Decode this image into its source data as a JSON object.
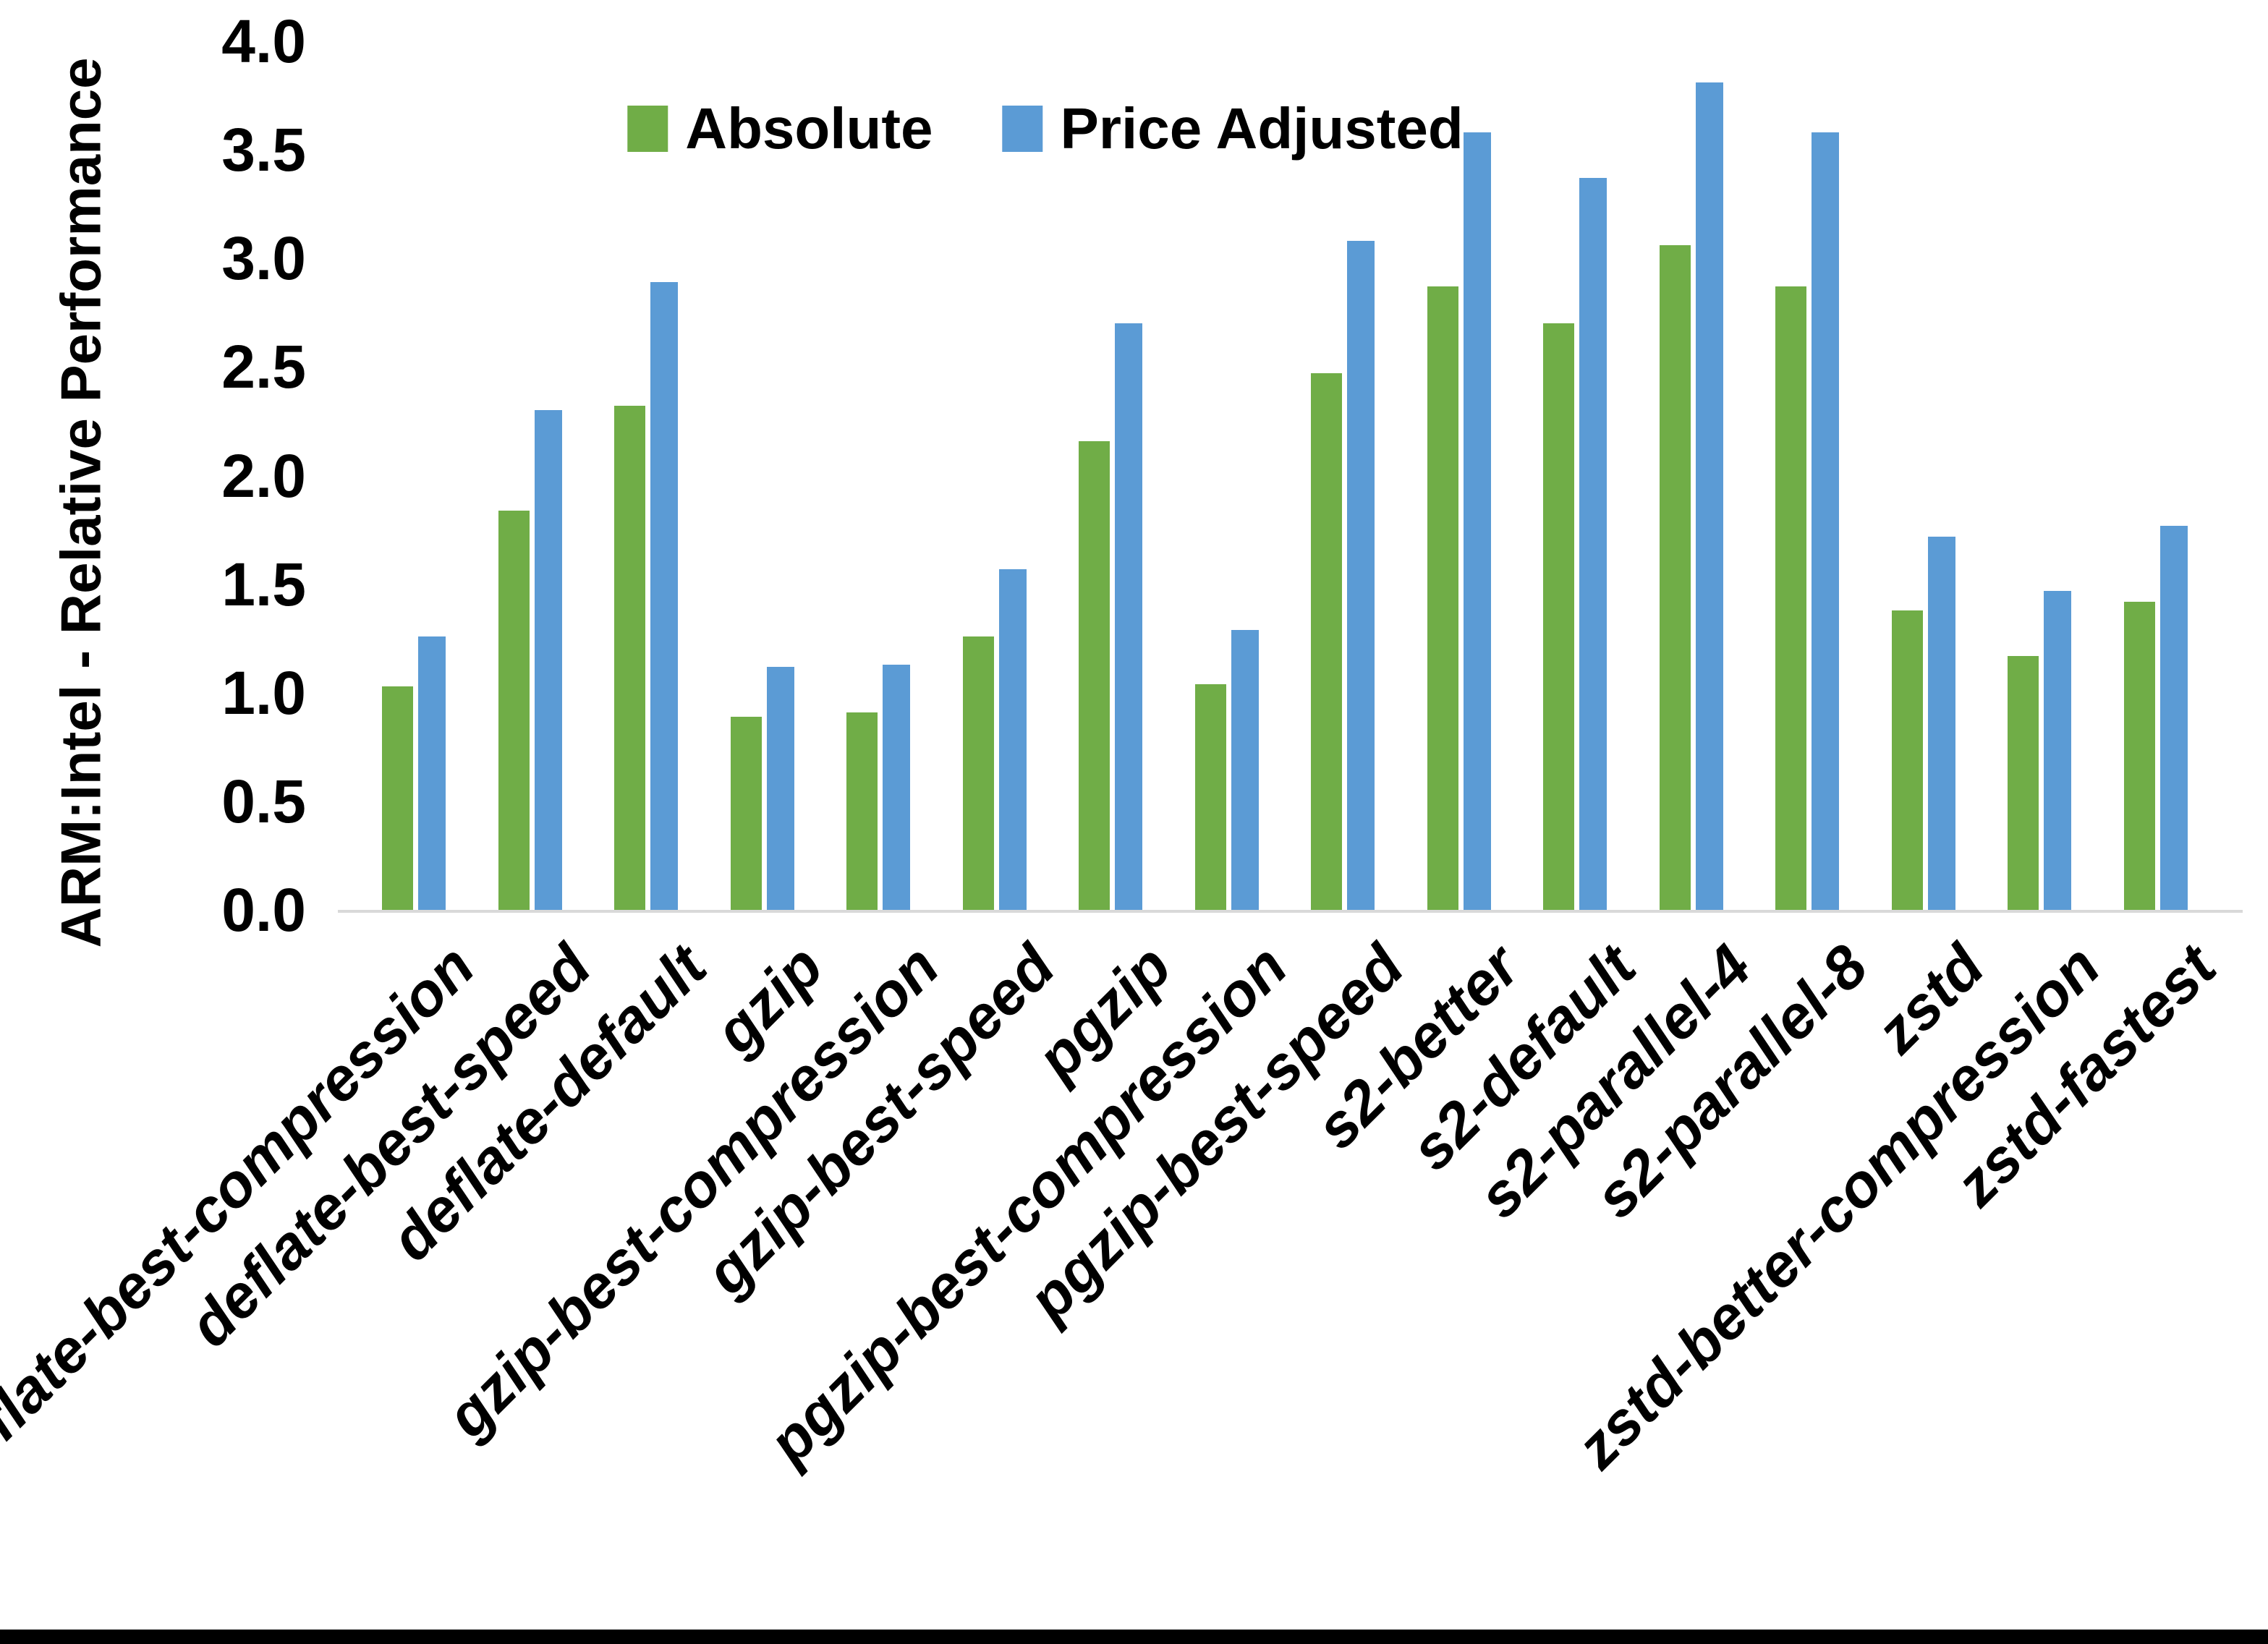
{
  "chart_data": {
    "type": "bar",
    "title": "",
    "xlabel": "",
    "ylabel": "ARM:Intel - Relative Performance",
    "ylim": [
      0.0,
      4.0
    ],
    "ytick_step": 0.5,
    "ytick_labels": [
      "0.0",
      "0.5",
      "1.0",
      "1.5",
      "2.0",
      "2.5",
      "3.0",
      "3.5",
      "4.0"
    ],
    "grid": false,
    "legend_position": "top-center",
    "background_color": "#FFFFFF",
    "axis_line_color": "#D9D9D9",
    "text_color": "#000000",
    "categories": [
      "deflate-best-compression",
      "deflate-best-speed",
      "deflate-default",
      "gzip",
      "gzip-best-compression",
      "gzip-best-speed",
      "pgzip",
      "pgzip-best-compression",
      "pgzip-best-speed",
      "s2-better",
      "s2-default",
      "s2-parallel-4",
      "s2-parallel-8",
      "zstd",
      "zstd-better-compression",
      "zstd-fastest"
    ],
    "series": [
      {
        "name": "Absolute",
        "color": "#70AD47",
        "values": [
          1.03,
          1.84,
          2.32,
          0.89,
          0.91,
          1.26,
          2.16,
          1.04,
          2.47,
          2.87,
          2.7,
          3.06,
          2.87,
          1.38,
          1.17,
          1.42
        ]
      },
      {
        "name": "Price Adjusted",
        "color": "#5B9BD5",
        "values": [
          1.26,
          2.3,
          2.89,
          1.12,
          1.13,
          1.57,
          2.7,
          1.29,
          3.08,
          3.58,
          3.37,
          3.81,
          3.58,
          1.72,
          1.47,
          1.77
        ]
      }
    ]
  }
}
